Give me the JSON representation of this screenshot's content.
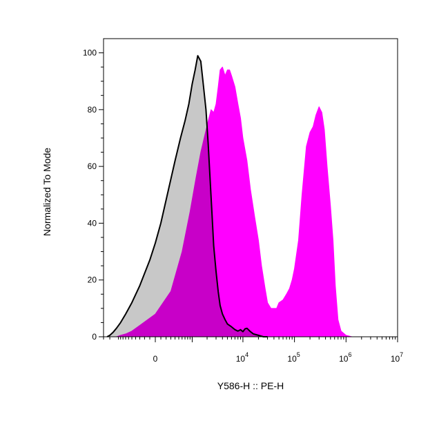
{
  "chart_data": {
    "type": "area",
    "title": "",
    "xlabel": "Y586-H :: PE-H",
    "ylabel": "Normalized To Mode",
    "x_scale": "biexponential",
    "xlim": [
      -2000,
      10000000
    ],
    "ylim": [
      0,
      105
    ],
    "y_ticks": [
      0,
      20,
      40,
      60,
      80,
      100
    ],
    "x_tick_labels": [
      {
        "base": "0",
        "exp": ""
      },
      {
        "base": "10",
        "exp": "4"
      },
      {
        "base": "10",
        "exp": "5"
      },
      {
        "base": "10",
        "exp": "6"
      },
      {
        "base": "10",
        "exp": "7"
      }
    ],
    "x_tick_values": [
      0,
      10000,
      100000,
      1000000,
      10000000
    ],
    "grid": false,
    "legend": "none",
    "series": [
      {
        "fill": "#ff00ff",
        "stroke": "#ff00ff",
        "x": [
          -1100,
          -900,
          -700,
          -500,
          -300,
          0,
          300,
          600,
          900,
          1200,
          1500,
          1800,
          2100,
          2400,
          2700,
          3000,
          3300,
          3600,
          4000,
          4500,
          5000,
          5500,
          6000,
          7000,
          8000,
          9000,
          10000,
          12000,
          14000,
          17000,
          20000,
          23000,
          27000,
          30000,
          35000,
          40000,
          45000,
          50000,
          60000,
          70000,
          80000,
          90000,
          100000,
          120000,
          140000,
          170000,
          200000,
          230000,
          260000,
          300000,
          340000,
          380000,
          430000,
          500000,
          560000,
          620000,
          700000,
          800000,
          1000000,
          1300000,
          2000000,
          5000000,
          10000000
        ],
        "y": [
          0,
          0.5,
          1,
          2,
          4,
          8,
          16,
          30,
          44,
          56,
          65,
          71,
          76,
          80,
          79,
          82,
          88,
          94,
          95,
          92,
          94,
          94,
          92,
          88,
          82,
          77,
          70,
          62,
          52,
          42,
          34,
          25,
          17,
          12,
          10,
          10,
          10,
          12,
          13,
          15,
          17,
          20,
          24,
          34,
          50,
          67,
          72,
          74,
          78,
          81,
          79,
          73,
          60,
          46,
          34,
          18,
          6,
          2,
          0.5,
          0,
          0,
          0,
          0
        ]
      },
      {
        "fill": "#c8c8c8",
        "stroke": "#000000",
        "x": [
          -1700,
          -1500,
          -1300,
          -1100,
          -900,
          -700,
          -500,
          -300,
          -100,
          0,
          100,
          250,
          400,
          550,
          700,
          850,
          1000,
          1150,
          1300,
          1500,
          1700,
          1900,
          2100,
          2300,
          2500,
          2700,
          3000,
          3300,
          3600,
          4000,
          4500,
          5000,
          6000,
          7000,
          8000,
          9000,
          10000,
          11000,
          12000,
          14000,
          16000,
          20000,
          25000,
          30000
        ],
        "y": [
          0,
          0.5,
          1.5,
          3,
          5,
          8,
          12,
          18,
          27,
          33,
          40,
          52,
          62,
          70,
          76,
          82,
          89,
          94,
          99,
          97,
          88,
          80,
          68,
          55,
          43,
          32,
          23,
          16,
          11,
          8,
          6,
          4.5,
          3.5,
          2.5,
          2,
          2.5,
          1.8,
          2.8,
          3,
          1.8,
          1,
          0.5,
          0,
          0
        ]
      }
    ]
  }
}
